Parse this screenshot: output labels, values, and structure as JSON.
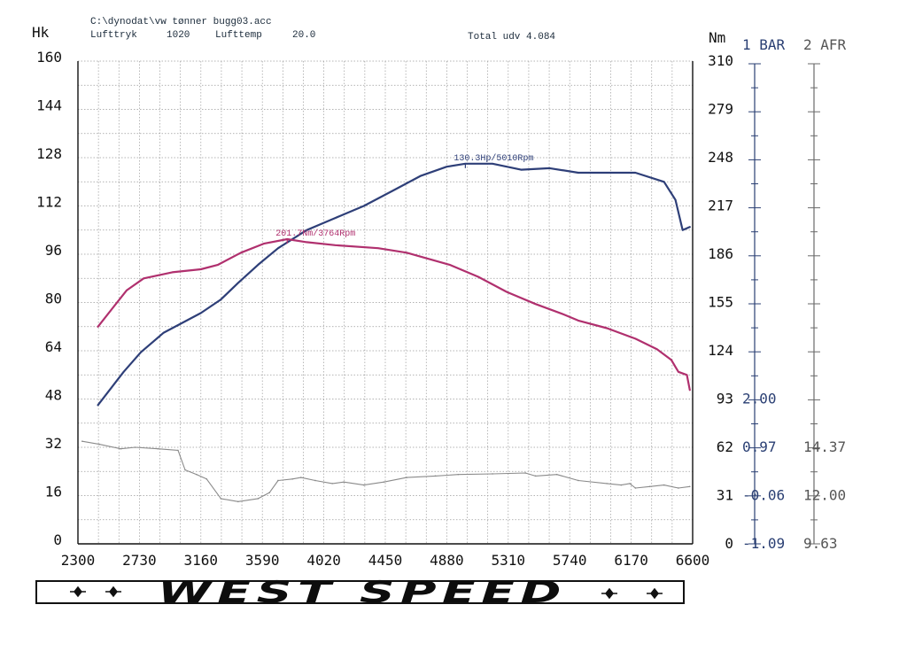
{
  "header": {
    "file_path": "C:\\dynodat\\vw tønner bugg03.acc",
    "pressure_label": "Lufttryk",
    "pressure_value": "1020",
    "temp_label": "Lufttemp",
    "temp_value": "20.0",
    "total_label": "Total udv 4.084"
  },
  "colors": {
    "power": "#2e3f78",
    "torque": "#b0306e",
    "boost": "#8a8a8a",
    "axis_blue": "#2a3f73",
    "grid": "#9a9a9a"
  },
  "chart_data": {
    "type": "line",
    "grid": true,
    "xlim": [
      2300,
      6600
    ],
    "x_ticks": [
      "2300",
      "2730",
      "3160",
      "3590",
      "4020",
      "4450",
      "4880",
      "5310",
      "5740",
      "6170",
      "6600"
    ],
    "left_axis": {
      "label": "Hk",
      "ylim": [
        0,
        160
      ],
      "ticks": [
        "0",
        "16",
        "32",
        "48",
        "64",
        "80",
        "96",
        "112",
        "128",
        "144",
        "160"
      ]
    },
    "right_axis": {
      "label": "Nm",
      "ylim": [
        0,
        310
      ],
      "ticks": [
        "0",
        "31",
        "62",
        "93",
        "124",
        "155",
        "186",
        "217",
        "248",
        "279",
        "310"
      ]
    },
    "bar_axis": {
      "label": "1 BAR",
      "ticks": [
        "-1.09",
        "-0.06",
        "0.97",
        "2.00"
      ]
    },
    "afr_axis": {
      "label": "2 AFR",
      "ticks": [
        "9.63",
        "12.00",
        "14.37"
      ]
    },
    "series": [
      {
        "key": "power",
        "axis": "left",
        "x": [
          2440,
          2620,
          2740,
          2900,
          3160,
          3300,
          3420,
          3560,
          3700,
          3900,
          4100,
          4300,
          4500,
          4700,
          4880,
          5010,
          5200,
          5400,
          5600,
          5800,
          6000,
          6200,
          6400,
          6480,
          6530,
          6580
        ],
        "values": [
          46,
          57,
          63.5,
          70,
          76.5,
          81,
          86.5,
          92.5,
          98,
          104,
          108,
          112,
          117,
          122,
          125,
          126,
          126,
          124,
          124.5,
          123,
          123,
          123,
          120,
          114,
          104,
          105
        ]
      },
      {
        "key": "torque",
        "axis": "left",
        "x": [
          2440,
          2640,
          2760,
          2960,
          3160,
          3280,
          3440,
          3600,
          3764,
          3900,
          4100,
          4400,
          4600,
          4900,
          5100,
          5300,
          5500,
          5700,
          5800,
          6000,
          6200,
          6350,
          6450,
          6500,
          6560,
          6580
        ],
        "values": [
          72,
          84,
          88,
          90,
          91,
          92.5,
          96.5,
          99.5,
          101,
          100,
          99,
          98,
          96.5,
          92.5,
          88.5,
          83.5,
          79.5,
          76,
          74,
          71.5,
          68,
          64.5,
          61,
          57,
          56,
          51
        ]
      },
      {
        "key": "boost",
        "axis": "left",
        "x": [
          2330,
          2450,
          2600,
          2700,
          2860,
          3000,
          3050,
          3130,
          3200,
          3300,
          3420,
          3560,
          3640,
          3700,
          3800,
          3860,
          3960,
          4080,
          4160,
          4300,
          4440,
          4600,
          4800,
          4960,
          5200,
          5430,
          5500,
          5650,
          5800,
          6000,
          6100,
          6160,
          6200,
          6300,
          6400,
          6500,
          6580
        ],
        "values": [
          34,
          33,
          31.5,
          32,
          31.5,
          31,
          24.5,
          23,
          21.5,
          15,
          14,
          15,
          17,
          21,
          21.5,
          22,
          21,
          20,
          20.5,
          19.5,
          20.5,
          22,
          22.5,
          23,
          23.2,
          23.5,
          22.5,
          23,
          21,
          20,
          19.5,
          20,
          18.5,
          19,
          19.5,
          18.5,
          19
        ]
      }
    ],
    "annotations": [
      {
        "text": "130.3Hp/5010Rpm",
        "series": "power",
        "x": 5010,
        "y": 126
      },
      {
        "text": "201.7Nm/3764Rpm",
        "series": "torque",
        "x": 3764,
        "y": 101
      }
    ]
  },
  "banner": {
    "text": "WEST SPEED"
  }
}
